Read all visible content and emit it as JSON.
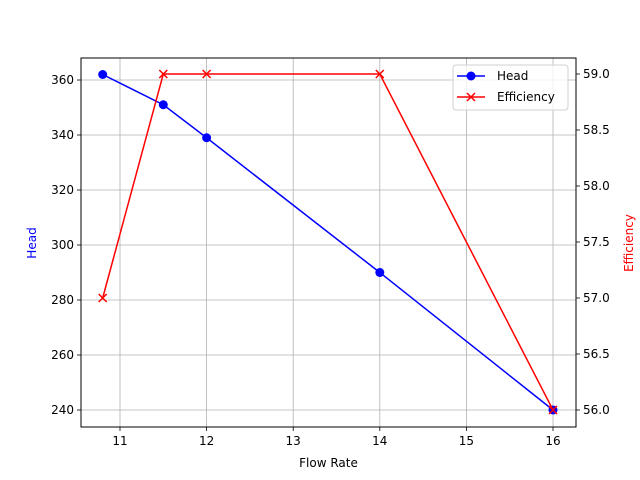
{
  "chart_data": {
    "type": "line",
    "title": "",
    "xlabel": "Flow Rate",
    "ylabel": "Head",
    "y2label": "Efficiency",
    "x": [
      10.8,
      11.5,
      12,
      14,
      16
    ],
    "series": [
      {
        "name": "Head",
        "axis": "left",
        "color": "#0000ff",
        "marker": "o",
        "values": [
          362,
          351,
          339,
          290,
          240
        ]
      },
      {
        "name": "Efficiency",
        "axis": "right",
        "color": "#ff0000",
        "marker": "x",
        "values": [
          57.0,
          59.0,
          59.0,
          59.0,
          56.0
        ]
      }
    ],
    "xticks": [
      "11",
      "12",
      "13",
      "14",
      "15",
      "16"
    ],
    "yticks": [
      "240",
      "260",
      "280",
      "300",
      "320",
      "340",
      "360"
    ],
    "y2ticks": [
      "56.0",
      "56.5",
      "57.0",
      "57.5",
      "58.0",
      "58.5",
      "59.0"
    ],
    "xlim": [
      10.54,
      16.26
    ],
    "ylim": [
      234,
      368
    ],
    "y2lim": [
      55.85,
      59.15
    ],
    "grid": true,
    "legend_position": "upper right"
  },
  "legend": {
    "items": [
      {
        "label": "Head"
      },
      {
        "label": "Efficiency"
      }
    ]
  },
  "axes": {
    "xlabel": "Flow Rate",
    "ylabel": "Head",
    "y2label": "Efficiency"
  }
}
